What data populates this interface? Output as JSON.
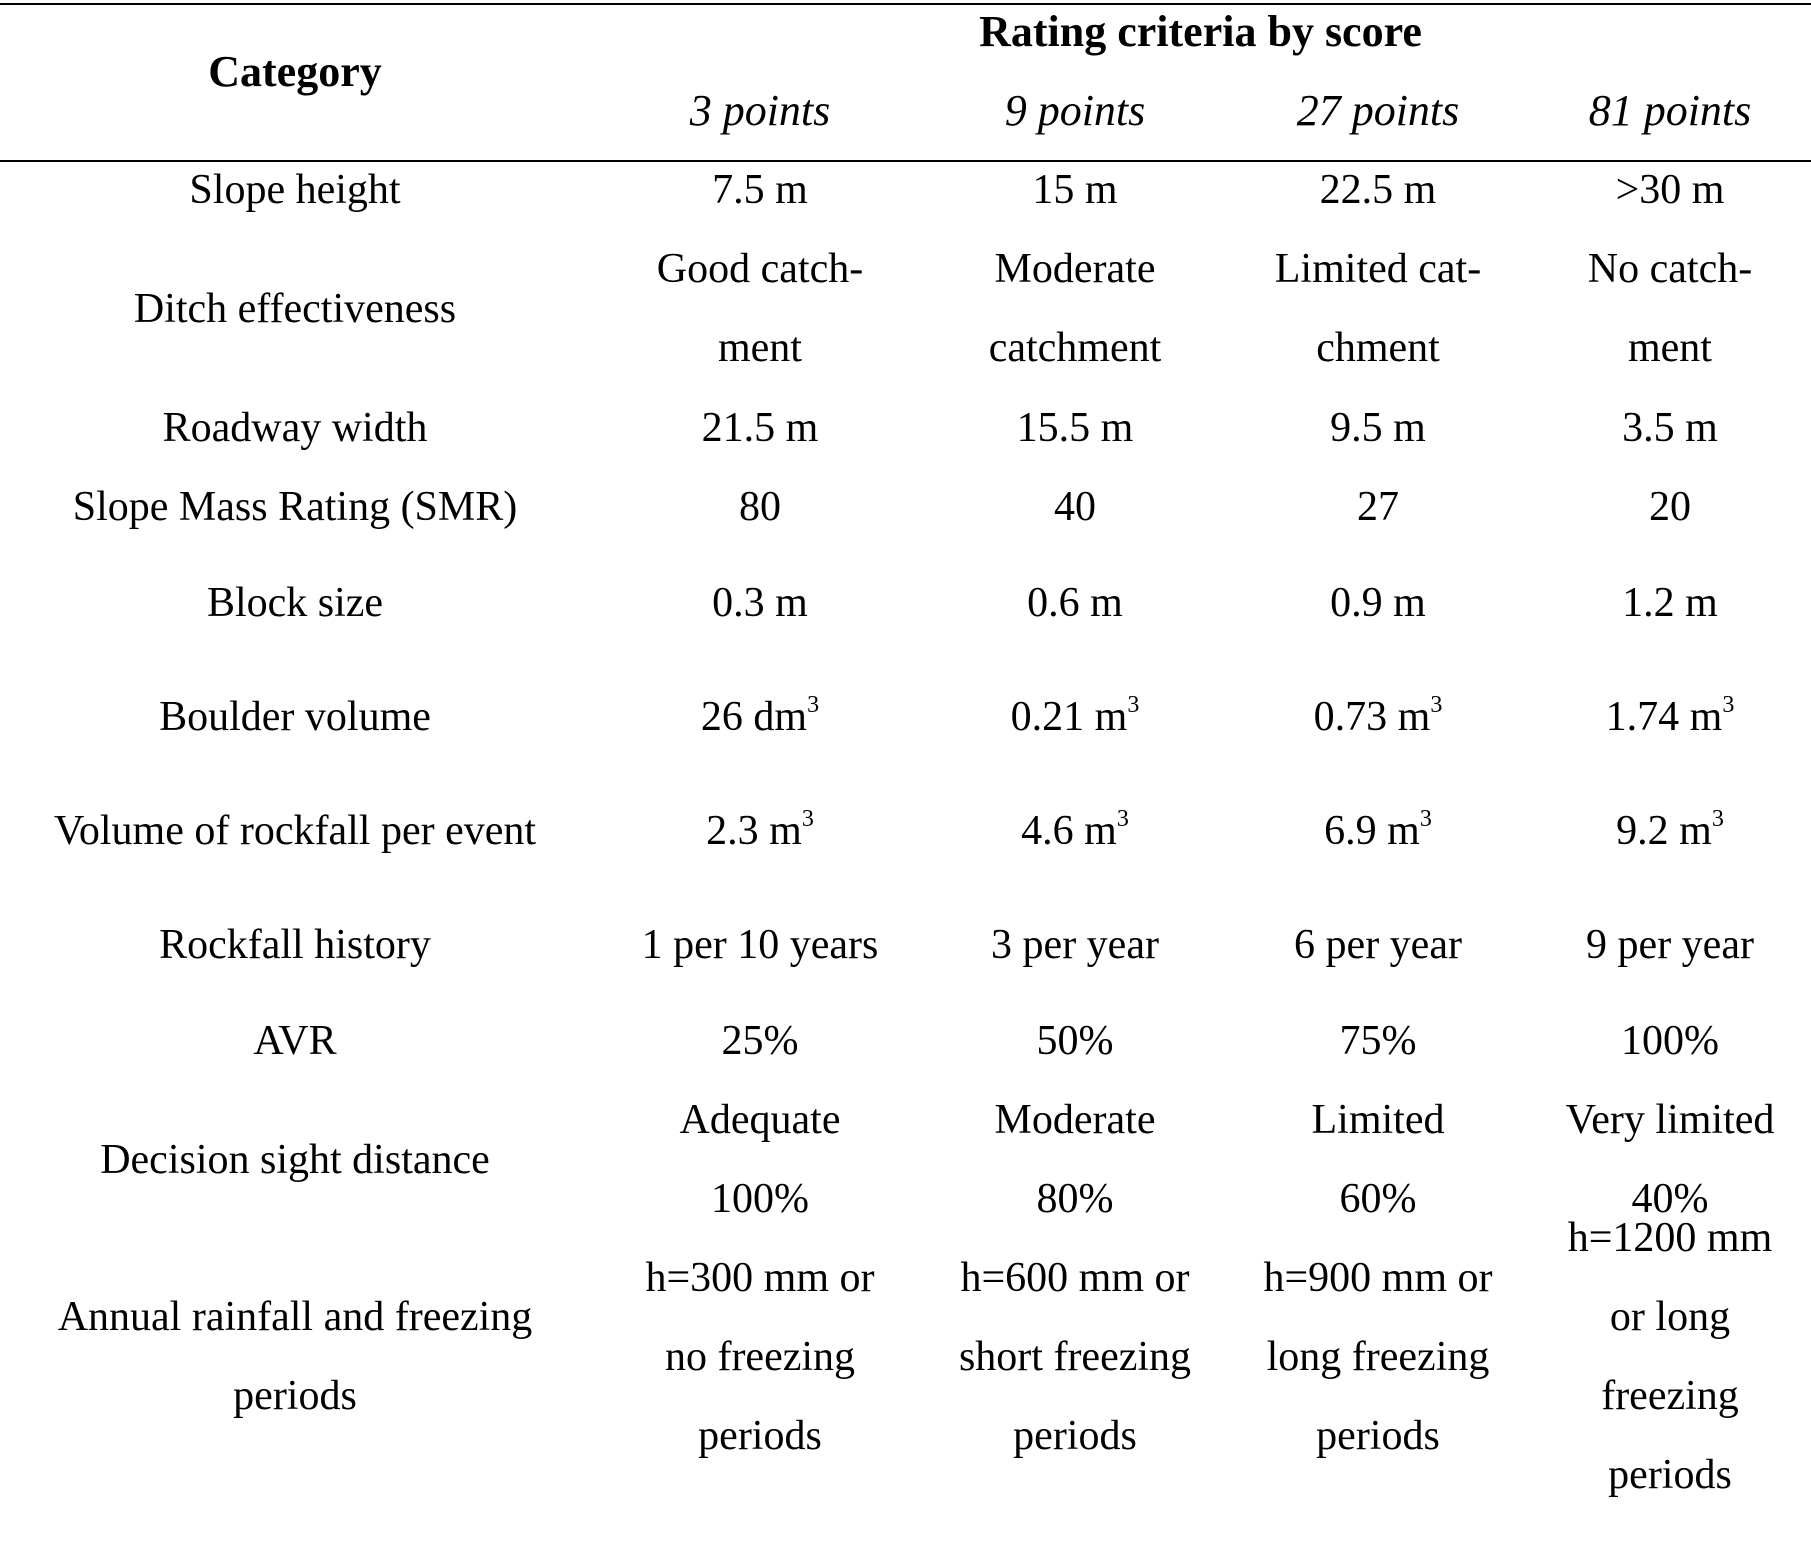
{
  "header": {
    "category": "Category",
    "rating_title": "Rating criteria by score",
    "points": [
      "3 points",
      "9 points",
      "27 points",
      "81 points"
    ]
  },
  "rows": [
    {
      "category": [
        "Slope height"
      ],
      "values": [
        [
          "7.5 m"
        ],
        [
          "15 m"
        ],
        [
          "22.5 m"
        ],
        [
          ">30 m"
        ]
      ]
    },
    {
      "category": [
        "Ditch effectiveness"
      ],
      "values": [
        [
          "Good catch-",
          "ment"
        ],
        [
          "Moderate",
          "catchment"
        ],
        [
          "Limited cat-",
          "chment"
        ],
        [
          "No catch-",
          "ment"
        ]
      ]
    },
    {
      "category": [
        "Roadway width"
      ],
      "values": [
        [
          "21.5 m"
        ],
        [
          "15.5 m"
        ],
        [
          "9.5 m"
        ],
        [
          "3.5 m"
        ]
      ]
    },
    {
      "category": [
        "Slope Mass Rating (SMR)"
      ],
      "values": [
        [
          "80"
        ],
        [
          "40"
        ],
        [
          "27"
        ],
        [
          "20"
        ]
      ]
    },
    {
      "category": [
        "Block size"
      ],
      "values": [
        [
          "0.3 m"
        ],
        [
          "0.6 m"
        ],
        [
          "0.9 m"
        ],
        [
          "1.2 m"
        ]
      ]
    },
    {
      "category": [
        "Boulder volume"
      ],
      "values": [
        [
          "26 dm",
          "3"
        ],
        [
          "0.21 m",
          "3"
        ],
        [
          "0.73 m",
          "3"
        ],
        [
          "1.74 m",
          "3"
        ]
      ],
      "superscript": true
    },
    {
      "category": [
        "Volume of rockfall per event"
      ],
      "values": [
        [
          "2.3 m",
          "3"
        ],
        [
          "4.6 m",
          "3"
        ],
        [
          "6.9 m",
          "3"
        ],
        [
          "9.2 m",
          "3"
        ]
      ],
      "superscript": true
    },
    {
      "category": [
        "Rockfall history"
      ],
      "values": [
        [
          "1 per 10 years"
        ],
        [
          "3 per year"
        ],
        [
          "6 per year"
        ],
        [
          "9 per year"
        ]
      ]
    },
    {
      "category": [
        "AVR"
      ],
      "values": [
        [
          "25%"
        ],
        [
          "50%"
        ],
        [
          "75%"
        ],
        [
          "100%"
        ]
      ]
    },
    {
      "category": [
        "Decision sight distance"
      ],
      "values": [
        [
          "Adequate",
          "100%"
        ],
        [
          "Moderate",
          "80%"
        ],
        [
          "Limited",
          "60%"
        ],
        [
          "Very limited",
          "40%"
        ]
      ]
    },
    {
      "category": [
        "Annual rainfall and freezing",
        "periods"
      ],
      "values": [
        [
          "h=300 mm or",
          "no freezing",
          "periods"
        ],
        [
          "h=600 mm or",
          "short freezing",
          "periods"
        ],
        [
          "h=900 mm or",
          "long freezing",
          "periods"
        ],
        [
          "h=1200 mm",
          "or long",
          "freezing",
          "periods"
        ]
      ]
    }
  ]
}
